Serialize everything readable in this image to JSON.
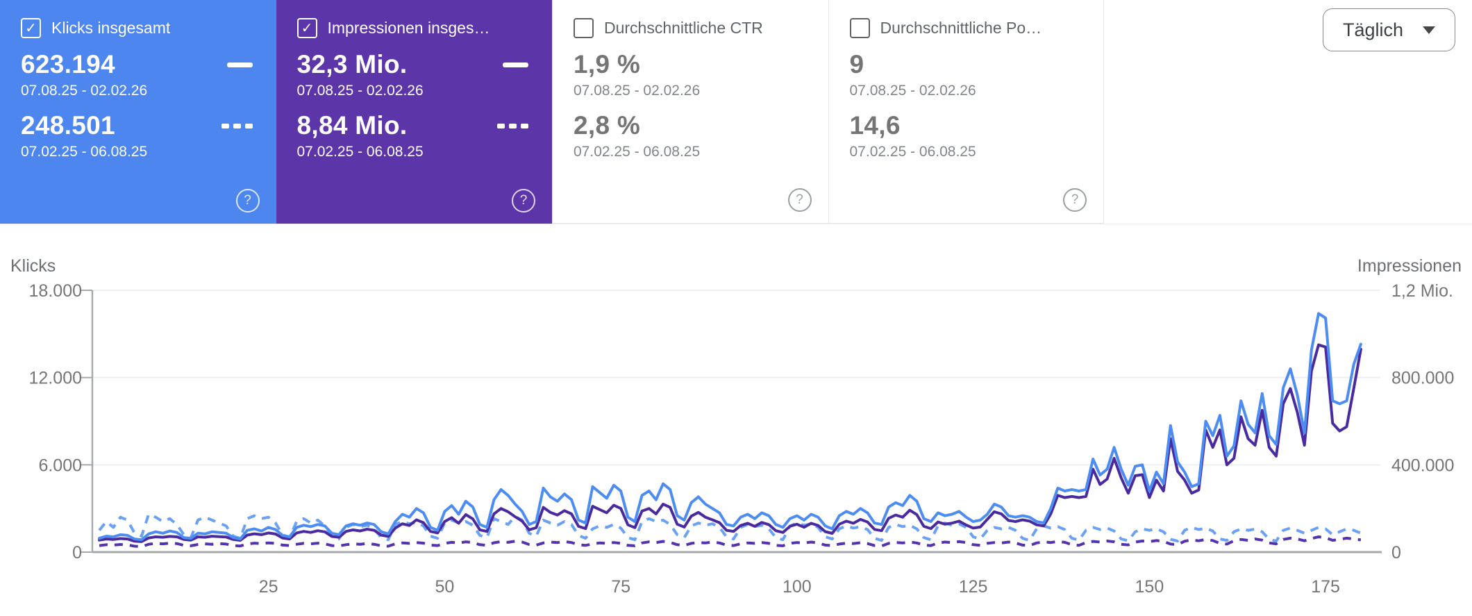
{
  "icons": {
    "check": "✓",
    "help": "?"
  },
  "control": {
    "granularity_label": "Täglich"
  },
  "cards": [
    {
      "label": "Klicks insgesamt",
      "checked": true,
      "bg": "#4d86ee",
      "value1": "623.194",
      "range1": "07.08.25 - 02.02.26",
      "value2": "248.501",
      "range2": "07.02.25 - 06.08.25"
    },
    {
      "label": "Impressionen insges…",
      "checked": true,
      "bg": "#5c35a9",
      "value1": "32,3 Mio.",
      "range1": "07.08.25 - 02.02.26",
      "value2": "8,84 Mio.",
      "range2": "07.02.25 - 06.08.25"
    },
    {
      "label": "Durchschnittliche CTR",
      "checked": false,
      "bg": "#ffffff",
      "value1": "1,9 %",
      "range1": "07.08.25 - 02.02.26",
      "value2": "2,8 %",
      "range2": "07.02.25 - 06.08.25"
    },
    {
      "label": "Durchschnittliche Po…",
      "checked": false,
      "bg": "#ffffff",
      "value1": "9",
      "range1": "07.08.25 - 02.02.26",
      "value2": "14,6",
      "range2": "07.02.25 - 06.08.25"
    }
  ],
  "chart_data": {
    "type": "line",
    "x_ticks": [
      25,
      50,
      75,
      100,
      125,
      150,
      175
    ],
    "y_left": {
      "title": "Klicks",
      "ticks": [
        "18.000",
        "12.000",
        "6.000",
        "0"
      ],
      "max": 18000
    },
    "y_right": {
      "title": "Impressionen",
      "ticks": [
        "1,2 Mio.",
        "800.000",
        "400.000",
        "0"
      ],
      "max": 1200000
    },
    "grid": true,
    "series": [
      {
        "name": "Impressionen 07.02.25 - 06.08.25",
        "axis": "right",
        "style": "dashed",
        "color": "#5433b0",
        "values": [
          30000,
          34000,
          32000,
          35000,
          33000,
          27000,
          25000,
          36000,
          40000,
          38000,
          41000,
          39000,
          31000,
          29000,
          35000,
          38000,
          36000,
          39000,
          37000,
          30000,
          28000,
          37000,
          41000,
          39000,
          42000,
          40000,
          32000,
          30000,
          36000,
          40000,
          38000,
          41000,
          38000,
          30000,
          28000,
          34000,
          38000,
          36000,
          39000,
          36000,
          29000,
          27000,
          38000,
          42000,
          40000,
          44000,
          41000,
          32000,
          30000,
          40000,
          45000,
          42000,
          47000,
          44000,
          34000,
          31000,
          43000,
          48000,
          45000,
          50000,
          46000,
          35000,
          32000,
          42000,
          46000,
          44000,
          48000,
          44000,
          34000,
          31000,
          38000,
          42000,
          40000,
          44000,
          40000,
          31000,
          29000,
          42000,
          47000,
          44000,
          49000,
          45000,
          34000,
          31000,
          40000,
          44000,
          42000,
          46000,
          42000,
          32000,
          30000,
          38000,
          42000,
          40000,
          44000,
          40000,
          31000,
          29000,
          40000,
          44000,
          42000,
          46000,
          42000,
          32000,
          30000,
          37000,
          41000,
          39000,
          43000,
          39000,
          30000,
          28000,
          40000,
          44000,
          42000,
          46000,
          42000,
          32000,
          30000,
          42000,
          46000,
          44000,
          48000,
          44000,
          34000,
          31000,
          40000,
          44000,
          42000,
          46000,
          42000,
          32000,
          30000,
          42000,
          47000,
          44000,
          49000,
          45000,
          34000,
          31000,
          44000,
          49000,
          46000,
          51000,
          47000,
          36000,
          33000,
          46000,
          51000,
          48000,
          53000,
          49000,
          37000,
          34000,
          50000,
          56000,
          52000,
          58000,
          53000,
          40000,
          37000,
          52000,
          58000,
          54000,
          60000,
          55000,
          42000,
          38000,
          58000,
          64000,
          60000,
          52000,
          62000,
          70000,
          66000,
          54000,
          58000,
          64000,
          60000,
          56000
        ]
      },
      {
        "name": "Klicks 07.02.25 - 06.08.25",
        "axis": "left",
        "style": "dashed",
        "color": "#6ba1f3",
        "values": [
          1500,
          2100,
          1700,
          2400,
          2200,
          1300,
          1100,
          2600,
          2400,
          2100,
          2300,
          1900,
          1200,
          1000,
          2200,
          2400,
          2200,
          2000,
          1800,
          1100,
          950,
          2300,
          2500,
          2300,
          2400,
          2000,
          1200,
          1000,
          2100,
          2300,
          2000,
          2200,
          1800,
          1100,
          900,
          1700,
          1900,
          1750,
          1850,
          1600,
          1000,
          850,
          1900,
          2100,
          1950,
          2050,
          1800,
          1100,
          950,
          2000,
          2200,
          2000,
          2100,
          1850,
          1150,
          1000,
          2300,
          2100,
          1900,
          2450,
          2200,
          1300,
          1100,
          2200,
          2000,
          1850,
          2100,
          1900,
          1150,
          950,
          1600,
          1800,
          1700,
          1900,
          1650,
          1000,
          850,
          2100,
          2300,
          2100,
          2200,
          1900,
          1200,
          1000,
          1800,
          2000,
          1850,
          1950,
          1700,
          1050,
          900,
          1700,
          1900,
          1750,
          1850,
          1600,
          1000,
          850,
          1800,
          2000,
          1850,
          1950,
          1700,
          1050,
          900,
          1600,
          1800,
          1650,
          1750,
          1550,
          950,
          800,
          1700,
          1900,
          1750,
          1850,
          1600,
          1000,
          850,
          1800,
          2000,
          1850,
          1950,
          1700,
          1050,
          900,
          1500,
          1700,
          1600,
          1700,
          1500,
          950,
          800,
          1600,
          1800,
          1650,
          1750,
          1550,
          950,
          820,
          1500,
          1700,
          1550,
          1650,
          1450,
          900,
          780,
          1400,
          1600,
          1500,
          1600,
          1400,
          880,
          760,
          1500,
          1700,
          1550,
          1650,
          1450,
          900,
          800,
          1400,
          1600,
          1500,
          1580,
          1400,
          880,
          760,
          1500,
          1650,
          1500,
          1300,
          1500,
          1700,
          1600,
          1200,
          1400,
          1600,
          1500,
          1300
        ]
      },
      {
        "name": "Impressionen 07.08.25 - 02.02.26",
        "axis": "right",
        "style": "solid",
        "color": "#4a2b9f",
        "values": [
          55000,
          60000,
          58000,
          62000,
          60000,
          50000,
          48000,
          65000,
          70000,
          68000,
          72000,
          70000,
          58000,
          55000,
          70000,
          68000,
          73000,
          71000,
          69000,
          58000,
          54000,
          78000,
          84000,
          80000,
          88000,
          83000,
          65000,
          60000,
          88000,
          95000,
          90000,
          98000,
          93000,
          72000,
          68000,
          95000,
          102000,
          97000,
          105000,
          100000,
          78000,
          72000,
          110000,
          130000,
          122000,
          148000,
          135000,
          95000,
          88000,
          140000,
          158000,
          132000,
          172000,
          152000,
          102000,
          95000,
          175000,
          200000,
          185000,
          162000,
          142000,
          102000,
          112000,
          205000,
          182000,
          170000,
          190000,
          175000,
          118000,
          108000,
          210000,
          195000,
          180000,
          215000,
          200000,
          125000,
          112000,
          188000,
          200000,
          175000,
          220000,
          205000,
          128000,
          115000,
          165000,
          182000,
          160000,
          148000,
          135000,
          100000,
          95000,
          122000,
          132000,
          118000,
          136000,
          126000,
          98000,
          90000,
          118000,
          128000,
          114000,
          132000,
          122000,
          94000,
          86000,
          128000,
          142000,
          132000,
          150000,
          138000,
          104000,
          98000,
          155000,
          170000,
          160000,
          192000,
          172000,
          118000,
          108000,
          138000,
          128000,
          133000,
          142000,
          124000,
          110000,
          115000,
          150000,
          185000,
          175000,
          145000,
          140000,
          148000,
          142000,
          125000,
          120000,
          175000,
          260000,
          250000,
          255000,
          250000,
          255000,
          380000,
          310000,
          335000,
          430000,
          340000,
          270000,
          350000,
          355000,
          250000,
          330000,
          280000,
          520000,
          370000,
          330000,
          270000,
          285000,
          560000,
          480000,
          560000,
          400000,
          430000,
          620000,
          520000,
          490000,
          650000,
          480000,
          440000,
          680000,
          750000,
          640000,
          490000,
          830000,
          950000,
          940000,
          590000,
          555000,
          575000,
          750000,
          930000
        ]
      },
      {
        "name": "Klicks 07.08.25 - 02.02.26",
        "axis": "left",
        "style": "solid",
        "color": "#4d8df2",
        "values": [
          950,
          1100,
          1050,
          1200,
          1150,
          900,
          850,
          1250,
          1400,
          1300,
          1450,
          1350,
          1000,
          950,
          1300,
          1250,
          1400,
          1350,
          1300,
          1000,
          900,
          1500,
          1600,
          1450,
          1700,
          1550,
          1150,
          1050,
          1700,
          1850,
          1750,
          1900,
          1800,
          1300,
          1200,
          1800,
          1950,
          1850,
          2000,
          1900,
          1400,
          1250,
          2100,
          2600,
          2400,
          3000,
          2700,
          1700,
          1500,
          2800,
          3200,
          2600,
          3500,
          3100,
          1900,
          1700,
          3600,
          4300,
          3900,
          3300,
          2800,
          1900,
          2100,
          4400,
          3800,
          3500,
          4000,
          3600,
          2200,
          2000,
          4500,
          4100,
          3700,
          4600,
          4200,
          2400,
          2100,
          3900,
          4200,
          3600,
          4700,
          4300,
          2500,
          2200,
          3400,
          3800,
          3300,
          3000,
          2700,
          1900,
          1800,
          2400,
          2600,
          2300,
          2700,
          2500,
          1900,
          1700,
          2300,
          2500,
          2200,
          2600,
          2400,
          1800,
          1600,
          2500,
          2800,
          2600,
          3000,
          2700,
          2000,
          1900,
          3100,
          3400,
          3200,
          3900,
          3500,
          2300,
          2100,
          2700,
          2500,
          2600,
          2800,
          2400,
          2100,
          2200,
          2600,
          3300,
          3100,
          2500,
          2400,
          2500,
          2400,
          2100,
          2000,
          3000,
          4400,
          4200,
          4300,
          4200,
          4300,
          6400,
          5300,
          5700,
          7200,
          5700,
          4600,
          5900,
          6000,
          4200,
          5500,
          4700,
          8700,
          6200,
          5500,
          4500,
          4700,
          9000,
          8000,
          9400,
          6600,
          7300,
          10400,
          8800,
          8200,
          10900,
          8000,
          7400,
          11300,
          12600,
          10800,
          8200,
          13900,
          16400,
          16100,
          10400,
          10200,
          10400,
          12900,
          14300
        ]
      }
    ]
  }
}
